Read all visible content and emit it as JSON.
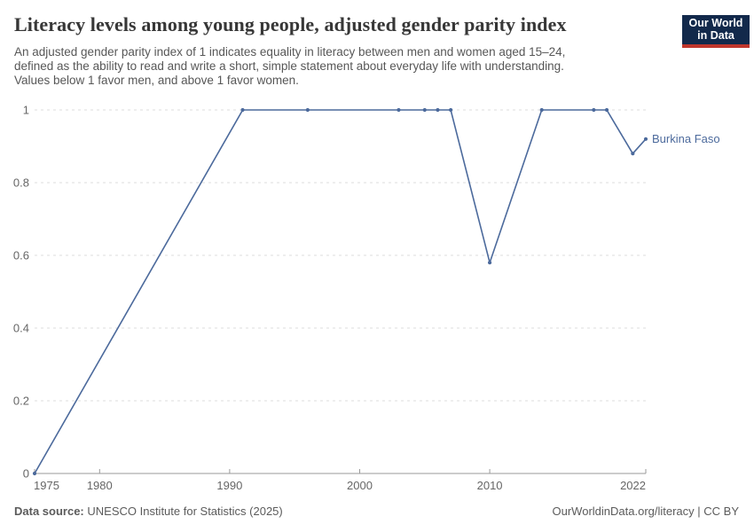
{
  "header": {
    "title": "Literacy levels among young people, adjusted gender parity index",
    "subtitle_lines": [
      "An adjusted gender parity index of 1 indicates equality in literacy between men and women aged 15–24,",
      "defined as the ability to read and write a short, simple statement about everyday life with understanding.",
      "Values below 1 favor men, and above 1 favor women."
    ],
    "logo": {
      "line1": "Our World",
      "line2": "in Data"
    }
  },
  "chart_data": {
    "type": "line",
    "title": "Literacy levels among young people, adjusted gender parity index",
    "xlabel": "",
    "ylabel": "",
    "xlim": [
      1975,
      2022
    ],
    "ylim": [
      0,
      1
    ],
    "xticks": [
      1975,
      1980,
      1990,
      2000,
      2010,
      2022
    ],
    "yticks": [
      0,
      0.2,
      0.4,
      0.6,
      0.8,
      1
    ],
    "grid": "horizontal-dashed",
    "legend_position": "end-of-line-label",
    "series": [
      {
        "name": "Burkina Faso",
        "color": "#4C6A9C",
        "points": [
          [
            1975,
            0
          ],
          [
            1991,
            1
          ],
          [
            1996,
            1
          ],
          [
            2003,
            1
          ],
          [
            2005,
            1
          ],
          [
            2006,
            1
          ],
          [
            2007,
            1
          ],
          [
            2010,
            0.58
          ],
          [
            2014,
            1
          ],
          [
            2018,
            1
          ],
          [
            2019,
            1
          ],
          [
            2021,
            0.88
          ],
          [
            2022,
            0.92
          ]
        ]
      }
    ]
  },
  "footer": {
    "datasource_label": "Data source:",
    "datasource_value": "UNESCO Institute for Statistics (2025)",
    "attribution": "OurWorldinData.org/literacy | CC BY"
  },
  "colors": {
    "line": "#4C6A9C",
    "grid": "#dedede",
    "axis": "#9a9a9a",
    "tick_label": "#666666",
    "title": "#373737",
    "subtitle": "#575757",
    "footer": "#5b5b5b",
    "logo_bg": "#12294B",
    "logo_accent": "#C0362C"
  }
}
